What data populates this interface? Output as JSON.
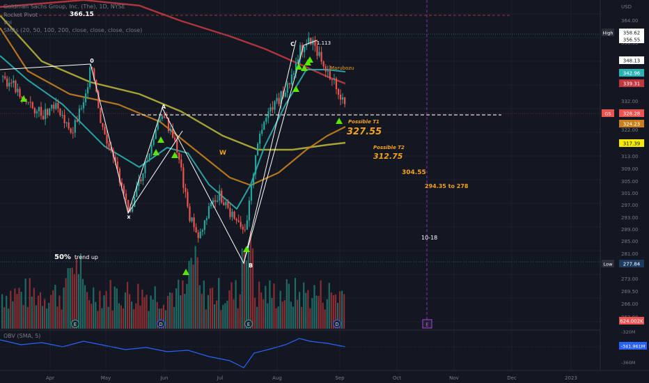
{
  "legend": {
    "title": "Goldman Sachs Group, Inc. (The), 1D, NYSE",
    "line2": "Rocket Pivot",
    "line3": "Vol",
    "line4": "SMAs (20, 50, 100, 200, close, close, close, close)",
    "obv": "OBV (SMA, 5)"
  },
  "currency": "USD",
  "colors": {
    "background": "#131722",
    "grid": "#1e222d",
    "up": "#26a69a",
    "down": "#ef5350",
    "sma20": "#2bb3b3",
    "sma50": "#c87f1c",
    "sma100": "#b8b03a",
    "sma200": "#c1373f",
    "signal": "#5be600",
    "annotation": "#f7a21b",
    "obv": "#2962ff"
  },
  "chart_data": {
    "type": "candlestick",
    "y_axis": {
      "range": [
        247,
        369
      ],
      "tick_labels": [
        "364.00",
        "356.55",
        "348.13",
        "342.96",
        "339.31",
        "332.00",
        "328.28",
        "324.23",
        "322.00",
        "317.39",
        "313.00",
        "309.00",
        "305.00",
        "301.00",
        "297.00",
        "293.00",
        "289.00",
        "285.00",
        "281.00",
        "277.84",
        "273.00",
        "269.50",
        "266.00",
        "262.00"
      ]
    },
    "x_axis": {
      "tick_labels": [
        "Apr",
        "May",
        "Jun",
        "Jul",
        "Aug",
        "Sep",
        "Oct",
        "Nov",
        "Dec",
        "2023"
      ]
    },
    "price_labels": [
      {
        "label": "High",
        "value": "358.62",
        "color": "#ffffff"
      },
      {
        "label": "",
        "value": "356.55",
        "color": "#ffffff"
      },
      {
        "label": "",
        "value": "348.13",
        "color": "#ffffff"
      },
      {
        "label": "",
        "value": "342.96",
        "color": "#2bb3b3"
      },
      {
        "label": "",
        "value": "339.31",
        "color": "#c1373f"
      },
      {
        "label": "GS",
        "value": "328.28",
        "color": "#ef5350"
      },
      {
        "label": "",
        "value": "324.23",
        "color": "#c87f1c"
      },
      {
        "label": "",
        "value": "317.39",
        "color": "#f5e900"
      },
      {
        "label": "Low",
        "value": "277.84",
        "color": "#1e3a5f"
      },
      {
        "label": "",
        "value": "624.002K",
        "color": "#ef5350"
      }
    ],
    "annotations": {
      "level_top": "366.15",
      "wave_0": "0",
      "wave_a": "A",
      "wave_x": "x",
      "wave_b": "B",
      "wave_c": "C",
      "wave_113": "1.113",
      "wave_w": "W",
      "marubozu": "Marubozu",
      "t1_label": "Possible T1",
      "t1_value": "327.55",
      "t2_label": "Possible T2",
      "t2_value": "312.75",
      "lvl3": "304.55",
      "lvl4": "294.35   to 278",
      "date_note": "10-18",
      "fifty": "50%",
      "trend": "trend up",
      "event_e": "E",
      "event_d": "D"
    },
    "obv": {
      "label": "OBV (SMA, 5)",
      "current": "-341.961M",
      "ticks": [
        "-320M",
        "-360M"
      ]
    }
  }
}
